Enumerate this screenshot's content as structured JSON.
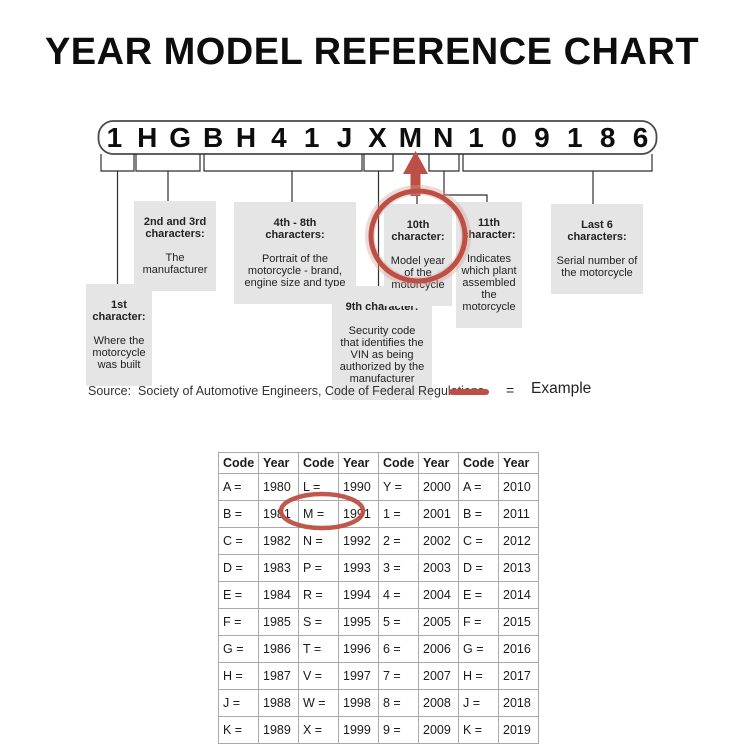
{
  "title": "YEAR MODEL REFERENCE CHART",
  "vin": {
    "characters": [
      "1",
      "H",
      "G",
      "B",
      "H",
      "4",
      "1",
      "J",
      "X",
      "M",
      "N",
      "1",
      "0",
      "9",
      "1",
      "8",
      "6"
    ]
  },
  "callouts": [
    {
      "heading": "1st\ncharacter:",
      "body": "Where the\nmotorcycle\nwas built"
    },
    {
      "heading": "2nd and 3rd\ncharacters:",
      "body": "The\nmanufacturer"
    },
    {
      "heading": "4th - 8th\ncharacters:",
      "body": "Portrait of the\nmotorcycle - brand,\nengine size and type"
    },
    {
      "heading": "9th character:",
      "body": "Security code\nthat identifies the\nVIN as being\nauthorized by the\nmanufacturer"
    },
    {
      "heading": "10th\ncharacter:",
      "body": "Model year\nof the\nmotorcycle"
    },
    {
      "heading": "11th\ncharacter:",
      "body": "Indicates\nwhich plant\nassembled\nthe\nmotorcycle"
    },
    {
      "heading": "Last 6\ncharacters:",
      "body": "Serial number of\nthe motorcycle"
    }
  ],
  "source": {
    "label": "Source:  Society of Automotive Engineers, Code of Federal Regulations"
  },
  "legend": {
    "equals": "=",
    "label": "Example"
  },
  "colors": {
    "accent_red": "#bd4f45",
    "callout_bg": "#e5e5e5",
    "table_border": "#a9a9a9"
  },
  "year_table": {
    "headers": [
      "Code",
      "Year",
      "Code",
      "Year",
      "Code",
      "Year",
      "Code",
      "Year"
    ],
    "rows": [
      [
        "A =",
        "1980",
        "L =",
        "1990",
        "Y =",
        "2000",
        "A =",
        "2010"
      ],
      [
        "B =",
        "1981",
        "M =",
        "1991",
        "1 =",
        "2001",
        "B =",
        "2011"
      ],
      [
        "C =",
        "1982",
        "N =",
        "1992",
        "2 =",
        "2002",
        "C =",
        "2012"
      ],
      [
        "D =",
        "1983",
        "P =",
        "1993",
        "3 =",
        "2003",
        "D =",
        "2013"
      ],
      [
        "E =",
        "1984",
        "R =",
        "1994",
        "4 =",
        "2004",
        "E =",
        "2014"
      ],
      [
        "F =",
        "1985",
        "S =",
        "1995",
        "5 =",
        "2005",
        "F =",
        "2015"
      ],
      [
        "G =",
        "1986",
        "T =",
        "1996",
        "6 =",
        "2006",
        "G =",
        "2016"
      ],
      [
        "H =",
        "1987",
        "V =",
        "1997",
        "7 =",
        "2007",
        "H =",
        "2017"
      ],
      [
        "J =",
        "1988",
        "W =",
        "1998",
        "8 =",
        "2008",
        "J =",
        "2018"
      ],
      [
        "K =",
        "1989",
        "X =",
        "1999",
        "9 =",
        "2009",
        "K =",
        "2019"
      ]
    ]
  }
}
